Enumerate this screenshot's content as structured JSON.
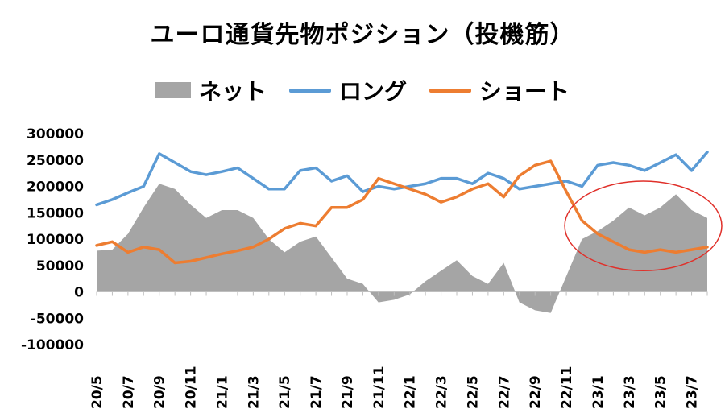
{
  "chart_data": {
    "type": "line",
    "title": "ユーロ通貨先物ポジション（投機筋）",
    "xlabel": "",
    "ylabel": "",
    "ylim": [
      -100000,
      300000
    ],
    "yticks": [
      300000,
      250000,
      200000,
      150000,
      100000,
      50000,
      0,
      -50000,
      -100000
    ],
    "ytick_labels": [
      "300000",
      "250000",
      "200000",
      "150000",
      "100000",
      "50000",
      "0",
      "-50000",
      "-100000"
    ],
    "xtick_labels": [
      "20/5",
      "20/7",
      "20/9",
      "20/11",
      "21/1",
      "21/3",
      "21/5",
      "21/7",
      "21/9",
      "21/11",
      "22/1",
      "22/3",
      "22/5",
      "22/7",
      "22/9",
      "22/11",
      "23/1",
      "23/3",
      "23/5",
      "23/7"
    ],
    "grid": false,
    "legend_position": "top",
    "x": [
      "20/5",
      "20/6",
      "20/7",
      "20/8",
      "20/9",
      "20/10",
      "20/11",
      "20/12",
      "21/1",
      "21/2",
      "21/3",
      "21/4",
      "21/5",
      "21/6",
      "21/7",
      "21/8",
      "21/9",
      "21/10",
      "21/11",
      "21/12",
      "22/1",
      "22/2",
      "22/3",
      "22/4",
      "22/5",
      "22/6",
      "22/7",
      "22/8",
      "22/9",
      "22/10",
      "22/11",
      "22/12",
      "23/1",
      "23/2",
      "23/3",
      "23/4",
      "23/5",
      "23/6",
      "23/7",
      "23/8"
    ],
    "series": [
      {
        "name": "ネット",
        "kind": "area",
        "color": "#a5a5a5",
        "values": [
          78000,
          80000,
          110000,
          160000,
          205000,
          195000,
          165000,
          140000,
          155000,
          155000,
          140000,
          100000,
          75000,
          95000,
          105000,
          65000,
          25000,
          15000,
          -20000,
          -15000,
          -5000,
          20000,
          40000,
          60000,
          30000,
          15000,
          55000,
          -20000,
          -35000,
          -40000,
          30000,
          100000,
          115000,
          135000,
          160000,
          145000,
          160000,
          185000,
          155000,
          140000
        ]
      },
      {
        "name": "ロング",
        "kind": "line",
        "color": "#5b9bd5",
        "values": [
          165000,
          175000,
          188000,
          200000,
          262000,
          245000,
          228000,
          222000,
          228000,
          235000,
          215000,
          195000,
          195000,
          230000,
          235000,
          210000,
          220000,
          190000,
          200000,
          195000,
          200000,
          205000,
          215000,
          215000,
          205000,
          225000,
          215000,
          195000,
          200000,
          205000,
          210000,
          200000,
          240000,
          245000,
          240000,
          230000,
          245000,
          260000,
          230000,
          265000
        ]
      },
      {
        "name": "ショート",
        "kind": "line",
        "color": "#ed7d31",
        "values": [
          88000,
          95000,
          75000,
          85000,
          80000,
          55000,
          58000,
          65000,
          72000,
          78000,
          85000,
          100000,
          120000,
          130000,
          125000,
          160000,
          160000,
          175000,
          215000,
          205000,
          195000,
          185000,
          170000,
          180000,
          195000,
          205000,
          180000,
          220000,
          240000,
          248000,
          190000,
          135000,
          110000,
          95000,
          80000,
          75000,
          80000,
          75000,
          80000,
          85000
        ]
      }
    ],
    "annotation": {
      "shape": "ellipse",
      "color": "#e0302a",
      "x_range": [
        "22/11",
        "23/8"
      ],
      "y_range": [
        40000,
        210000
      ]
    }
  }
}
